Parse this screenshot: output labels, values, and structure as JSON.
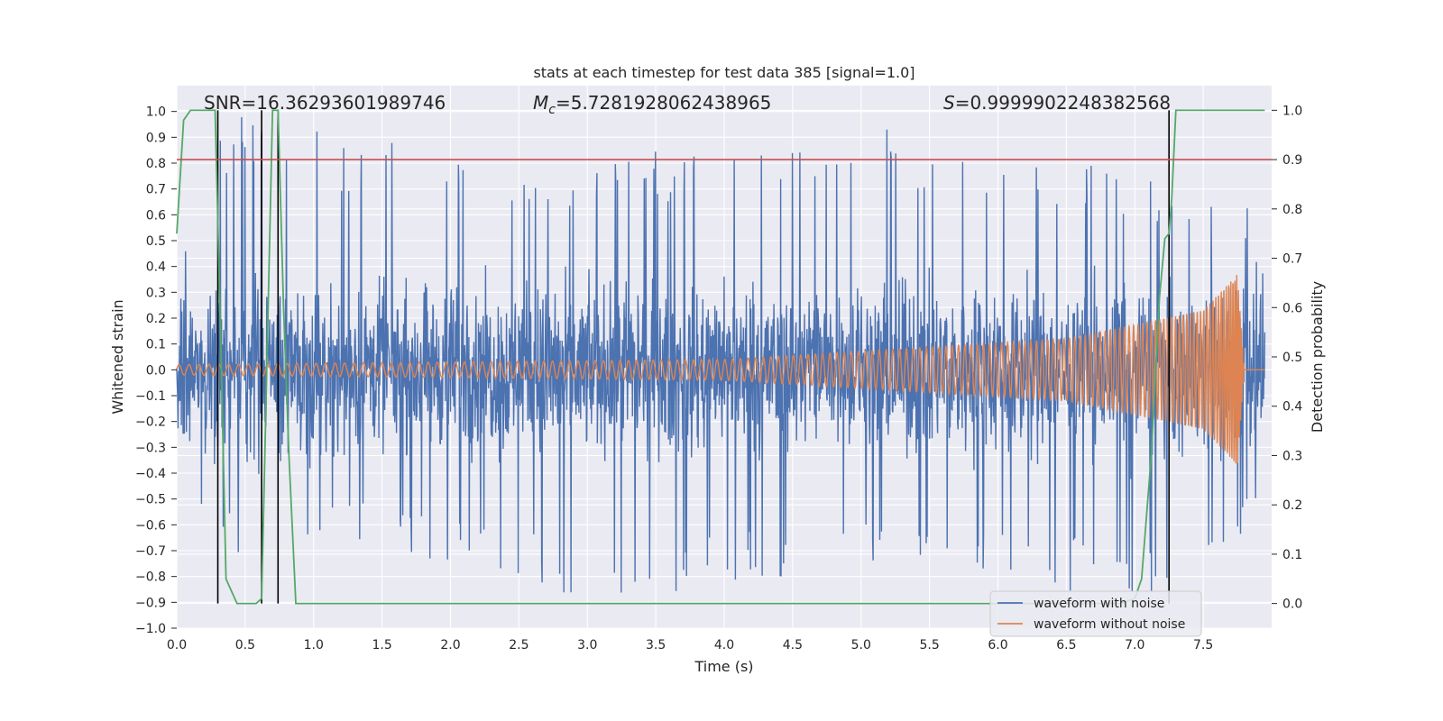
{
  "chart_data": {
    "type": "line",
    "title": "stats at each timestep for test data 385 [signal=1.0]",
    "xlabel": "Time (s)",
    "ylabel_left": "Whitened strain",
    "ylabel_right": "Detection probability",
    "xlim": [
      0.0,
      8.0
    ],
    "ylim_left": [
      -1.0,
      1.1
    ],
    "ylim_right": [
      -0.05,
      1.05
    ],
    "x_ticks": [
      "0.0",
      "0.5",
      "1.0",
      "1.5",
      "2.0",
      "2.5",
      "3.0",
      "3.5",
      "4.0",
      "4.5",
      "5.0",
      "5.5",
      "6.0",
      "6.5",
      "7.0",
      "7.5"
    ],
    "y_left_ticks": [
      "-1.0",
      "-0.9",
      "-0.8",
      "-0.7",
      "-0.6",
      "-0.5",
      "-0.4",
      "-0.3",
      "-0.2",
      "-0.1",
      "0.0",
      "0.1",
      "0.2",
      "0.3",
      "0.4",
      "0.5",
      "0.6",
      "0.7",
      "0.8",
      "0.9",
      "1.0"
    ],
    "y_right_ticks": [
      "0.0",
      "0.1",
      "0.2",
      "0.3",
      "0.4",
      "0.5",
      "0.6",
      "0.7",
      "0.8",
      "0.9",
      "1.0"
    ],
    "grid": true,
    "annotations": {
      "snr": "SNR=16.36293601989746",
      "mc_symbol": "M",
      "mc_sub": "c",
      "mc_value": "=5.7281928062438965",
      "s_symbol": "S",
      "s_value": "=0.9999902248382568"
    },
    "legend": {
      "placement": "lower-right",
      "entries": [
        "waveform with noise",
        "waveform without noise"
      ]
    },
    "colors": {
      "noise": "#4c72b0",
      "clean": "#dd8452",
      "probability": "#55a868",
      "threshold": "#c44e52",
      "markers": "#000000",
      "background": "#eaeaf2"
    },
    "threshold_right": 0.9,
    "vertical_markers_s": [
      0.3,
      0.62,
      0.74,
      7.25
    ],
    "probability_series": {
      "name": "detection probability",
      "t": [
        0.0,
        0.05,
        0.1,
        0.2,
        0.28,
        0.32,
        0.36,
        0.44,
        0.5,
        0.58,
        0.62,
        0.7,
        0.74,
        0.78,
        0.82,
        0.87,
        1.0,
        2.0,
        3.0,
        4.0,
        5.0,
        6.0,
        6.9,
        7.0,
        7.05,
        7.12,
        7.18,
        7.22,
        7.25,
        7.27,
        7.3,
        7.35,
        7.5,
        7.7,
        7.95
      ],
      "p": [
        0.75,
        0.98,
        1.0,
        1.0,
        1.0,
        0.55,
        0.05,
        0.0,
        0.0,
        0.0,
        0.01,
        1.0,
        1.0,
        0.6,
        0.3,
        0.0,
        0.0,
        0.0,
        0.0,
        0.0,
        0.0,
        0.0,
        0.0,
        0.01,
        0.05,
        0.3,
        0.62,
        0.74,
        0.75,
        0.82,
        1.0,
        1.0,
        1.0,
        1.0,
        1.0
      ]
    },
    "noise_series": {
      "name": "waveform with noise",
      "amplitude_envelope": [
        {
          "t": 0.0,
          "low": -0.6,
          "high": 0.45
        },
        {
          "t": 0.3,
          "low": -0.68,
          "high": 1.0
        },
        {
          "t": 0.75,
          "low": -0.85,
          "high": 1.0
        },
        {
          "t": 1.25,
          "low": -0.65,
          "high": 0.9
        },
        {
          "t": 3.0,
          "low": -0.9,
          "high": 0.8
        },
        {
          "t": 5.02,
          "low": -0.78,
          "high": 0.98
        },
        {
          "t": 7.38,
          "low": -0.9,
          "high": 0.72
        },
        {
          "t": 7.65,
          "low": -0.7,
          "high": 0.88
        },
        {
          "t": 7.95,
          "low": -0.55,
          "high": 0.45
        }
      ]
    },
    "clean_series": {
      "name": "waveform without noise",
      "amplitude_envelope": [
        {
          "t": 0.0,
          "amp": 0.02
        },
        {
          "t": 4.0,
          "amp": 0.04
        },
        {
          "t": 6.5,
          "amp": 0.12
        },
        {
          "t": 7.5,
          "amp": 0.23
        },
        {
          "t": 7.75,
          "amp": 0.37
        },
        {
          "t": 7.8,
          "amp": 0.0
        },
        {
          "t": 7.95,
          "amp": 0.0
        }
      ]
    }
  }
}
